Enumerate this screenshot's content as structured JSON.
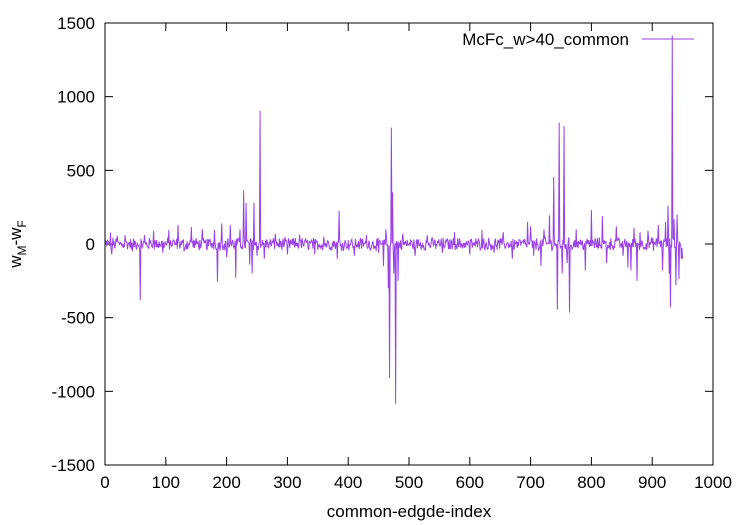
{
  "chart_data": {
    "type": "line",
    "title": "",
    "xlabel": "common-edgde-index",
    "ylabel": {
      "base": "w",
      "sub1": "M",
      "mid": "-w",
      "sub2": "F"
    },
    "xlim": [
      0,
      1000
    ],
    "ylim": [
      -1500,
      1500
    ],
    "xticks": [
      0,
      100,
      200,
      300,
      400,
      500,
      600,
      700,
      800,
      900,
      1000
    ],
    "yticks": [
      -1500,
      -1000,
      -500,
      0,
      500,
      1000,
      1500
    ],
    "grid": false,
    "legend_position": "top-right",
    "series": [
      {
        "name": "McFc_w>40_common",
        "color": "#9b42e6",
        "x_start": 0,
        "x_step": 1,
        "noise_amplitude": 38,
        "spikes": [
          [
            9,
            78
          ],
          [
            11,
            -70
          ],
          [
            20,
            55
          ],
          [
            33,
            60
          ],
          [
            45,
            -50
          ],
          [
            58,
            -380
          ],
          [
            65,
            60
          ],
          [
            80,
            90
          ],
          [
            95,
            -60
          ],
          [
            105,
            95
          ],
          [
            120,
            130
          ],
          [
            130,
            -50
          ],
          [
            142,
            115
          ],
          [
            160,
            100
          ],
          [
            180,
            95
          ],
          [
            185,
            -255
          ],
          [
            192,
            140
          ],
          [
            200,
            -90
          ],
          [
            206,
            130
          ],
          [
            215,
            -230
          ],
          [
            222,
            100
          ],
          [
            228,
            365
          ],
          [
            232,
            280
          ],
          [
            238,
            -140
          ],
          [
            242,
            -200
          ],
          [
            245,
            280
          ],
          [
            250,
            -80
          ],
          [
            255,
            905
          ],
          [
            262,
            -100
          ],
          [
            280,
            70
          ],
          [
            300,
            -70
          ],
          [
            320,
            65
          ],
          [
            345,
            -70
          ],
          [
            360,
            50
          ],
          [
            382,
            -100
          ],
          [
            385,
            225
          ],
          [
            410,
            -80
          ],
          [
            430,
            60
          ],
          [
            450,
            -60
          ],
          [
            458,
            -150
          ],
          [
            462,
            100
          ],
          [
            466,
            -300
          ],
          [
            468,
            -910
          ],
          [
            471,
            790
          ],
          [
            473,
            350
          ],
          [
            475,
            -200
          ],
          [
            478,
            -1085
          ],
          [
            482,
            -250
          ],
          [
            490,
            70
          ],
          [
            510,
            -80
          ],
          [
            530,
            60
          ],
          [
            555,
            -60
          ],
          [
            575,
            80
          ],
          [
            600,
            -70
          ],
          [
            620,
            95
          ],
          [
            640,
            -60
          ],
          [
            655,
            80
          ],
          [
            670,
            -100
          ],
          [
            695,
            150
          ],
          [
            700,
            120
          ],
          [
            705,
            -80
          ],
          [
            717,
            -150
          ],
          [
            722,
            100
          ],
          [
            731,
            195
          ],
          [
            738,
            455
          ],
          [
            744,
            -445
          ],
          [
            747,
            825
          ],
          [
            752,
            -200
          ],
          [
            755,
            800
          ],
          [
            760,
            -130
          ],
          [
            764,
            -465
          ],
          [
            775,
            100
          ],
          [
            790,
            -180
          ],
          [
            800,
            230
          ],
          [
            818,
            190
          ],
          [
            825,
            -130
          ],
          [
            841,
            120
          ],
          [
            852,
            -80
          ],
          [
            860,
            -160
          ],
          [
            865,
            -180
          ],
          [
            870,
            110
          ],
          [
            875,
            -250
          ],
          [
            880,
            80
          ],
          [
            893,
            90
          ],
          [
            910,
            130
          ],
          [
            917,
            -180
          ],
          [
            922,
            150
          ],
          [
            926,
            260
          ],
          [
            928,
            -200
          ],
          [
            930,
            -430
          ],
          [
            933,
            1415
          ],
          [
            936,
            170
          ],
          [
            939,
            -280
          ],
          [
            941,
            200
          ],
          [
            944,
            -240
          ],
          [
            948,
            -100
          ],
          [
            950,
            -100
          ]
        ]
      }
    ]
  }
}
